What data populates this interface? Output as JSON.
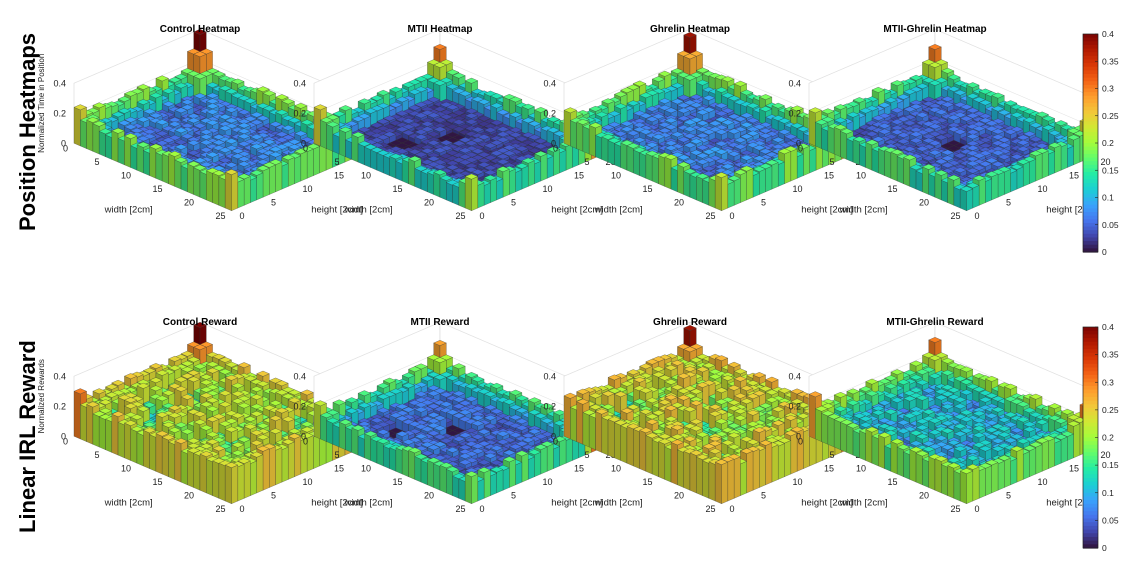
{
  "row_labels": [
    "Position Heatmaps",
    "Linear IRL Reward"
  ],
  "colorbar": {
    "min": 0,
    "max": 0.4,
    "ticks": [
      "0.4",
      "0.35",
      "0.3",
      "0.25",
      "0.2",
      "0.15",
      "0.1",
      "0.05",
      "0"
    ],
    "colormap": [
      "#30123b",
      "#4145ab",
      "#4675ed",
      "#39a2fc",
      "#1bcfd4",
      "#24eca6",
      "#61fc6c",
      "#a4fc3b",
      "#d1e834",
      "#f3c63a",
      "#fe9b2d",
      "#f36315",
      "#d93806",
      "#b11901",
      "#7a0403"
    ]
  },
  "chart_data": [
    {
      "type": "heatmap",
      "row": 0,
      "col": 0,
      "title": "Control Heatmap",
      "zlabel": "Normalized Time in Position",
      "xlabel": "width [2cm]",
      "ylabel": "height [2cm]",
      "x_ticks": [
        "0",
        "5",
        "10",
        "15",
        "20",
        "25"
      ],
      "y_ticks": [
        "0",
        "5",
        "10",
        "15",
        "20"
      ],
      "z_ticks": [
        "0",
        "0.2",
        "0.4"
      ],
      "zlim": [
        0,
        0.4
      ],
      "grid_size": [
        25,
        20
      ],
      "interior_level": 0.06,
      "edge_level": 0.14,
      "corner_peaks": [
        0.4,
        0.25,
        0.24,
        0.24
      ],
      "low_patches": []
    },
    {
      "type": "heatmap",
      "row": 0,
      "col": 1,
      "title": "MTII Heatmap",
      "zlabel": "",
      "xlabel": "width [2cm]",
      "ylabel": "height [2cm]",
      "x_ticks": [
        "0",
        "5",
        "10",
        "15",
        "20",
        "25"
      ],
      "y_ticks": [
        "0",
        "5",
        "10",
        "15",
        "20"
      ],
      "z_ticks": [
        "0",
        "0.2",
        "0.4"
      ],
      "zlim": [
        0,
        0.4
      ],
      "grid_size": [
        25,
        20
      ],
      "interior_level": 0.03,
      "edge_level": 0.11,
      "corner_peaks": [
        0.3,
        0.28,
        0.24,
        0.21
      ],
      "low_patches": [
        [
          10,
          8
        ],
        [
          7,
          13
        ]
      ]
    },
    {
      "type": "heatmap",
      "row": 0,
      "col": 2,
      "title": "Ghrelin Heatmap",
      "zlabel": "",
      "xlabel": "width [2cm]",
      "ylabel": "height [2cm]",
      "x_ticks": [
        "0",
        "5",
        "10",
        "15",
        "20",
        "25"
      ],
      "y_ticks": [
        "0",
        "5",
        "10",
        "15",
        "20"
      ],
      "z_ticks": [
        "0",
        "0.2",
        "0.4"
      ],
      "zlim": [
        0,
        0.4
      ],
      "grid_size": [
        25,
        20
      ],
      "interior_level": 0.06,
      "edge_level": 0.14,
      "corner_peaks": [
        0.38,
        0.25,
        0.22,
        0.22
      ],
      "low_patches": []
    },
    {
      "type": "heatmap",
      "row": 0,
      "col": 3,
      "title": "MTII-Ghrelin Heatmap",
      "zlabel": "",
      "xlabel": "width [2cm]",
      "ylabel": "height [2cm]",
      "x_ticks": [
        "0",
        "5",
        "10",
        "15",
        "20",
        "25"
      ],
      "y_ticks": [
        "0",
        "5",
        "10",
        "15",
        "20"
      ],
      "z_ticks": [
        "0",
        "0.2",
        "0.4"
      ],
      "zlim": [
        0,
        0.4
      ],
      "grid_size": [
        25,
        20
      ],
      "interior_level": 0.045,
      "edge_level": 0.12,
      "corner_peaks": [
        0.3,
        0.24,
        0.22,
        0.12
      ],
      "low_patches": [
        [
          12,
          9
        ]
      ]
    },
    {
      "type": "heatmap",
      "row": 1,
      "col": 0,
      "title": "Control Reward",
      "zlabel": "Normalized Rewards",
      "xlabel": "width [2cm]",
      "ylabel": "height [2cm]",
      "x_ticks": [
        "0",
        "5",
        "10",
        "15",
        "20",
        "25"
      ],
      "y_ticks": [
        "0",
        "5",
        "10",
        "15",
        "20"
      ],
      "z_ticks": [
        "0",
        "0.2",
        "0.4"
      ],
      "zlim": [
        0,
        0.4
      ],
      "grid_size": [
        25,
        20
      ],
      "interior_level": 0.17,
      "edge_level": 0.2,
      "corner_peaks": [
        0.4,
        0.3,
        0.3,
        0.24
      ],
      "low_patches": []
    },
    {
      "type": "heatmap",
      "row": 1,
      "col": 1,
      "title": "MTII Reward",
      "zlabel": "",
      "xlabel": "width [2cm]",
      "ylabel": "height [2cm]",
      "x_ticks": [
        "0",
        "5",
        "10",
        "15",
        "20",
        "25"
      ],
      "y_ticks": [
        "0",
        "5",
        "10",
        "15",
        "20"
      ],
      "z_ticks": [
        "0",
        "0.2",
        "0.4"
      ],
      "zlim": [
        0,
        0.4
      ],
      "grid_size": [
        25,
        20
      ],
      "interior_level": 0.05,
      "edge_level": 0.12,
      "corner_peaks": [
        0.28,
        0.3,
        0.22,
        0.18
      ],
      "low_patches": [
        [
          10,
          8
        ],
        [
          6,
          13
        ]
      ]
    },
    {
      "type": "heatmap",
      "row": 1,
      "col": 2,
      "title": "Ghrelin Reward",
      "zlabel": "",
      "xlabel": "width [2cm]",
      "ylabel": "height [2cm]",
      "x_ticks": [
        "0",
        "5",
        "10",
        "15",
        "20",
        "25"
      ],
      "y_ticks": [
        "0",
        "5",
        "10",
        "15",
        "20"
      ],
      "z_ticks": [
        "0",
        "0.2",
        "0.4"
      ],
      "zlim": [
        0,
        0.4
      ],
      "grid_size": [
        25,
        20
      ],
      "interior_level": 0.18,
      "edge_level": 0.21,
      "corner_peaks": [
        0.38,
        0.28,
        0.27,
        0.25
      ],
      "low_patches": []
    },
    {
      "type": "heatmap",
      "row": 1,
      "col": 3,
      "title": "MTII-Ghrelin Reward",
      "zlabel": "",
      "xlabel": "width [2cm]",
      "ylabel": "height [2cm]",
      "x_ticks": [
        "0",
        "5",
        "10",
        "15",
        "20",
        "25"
      ],
      "y_ticks": [
        "0",
        "5",
        "10",
        "15",
        "20"
      ],
      "z_ticks": [
        "0",
        "0.2",
        "0.4"
      ],
      "zlim": [
        0,
        0.4
      ],
      "grid_size": [
        25,
        20
      ],
      "interior_level": 0.09,
      "edge_level": 0.15,
      "corner_peaks": [
        0.3,
        0.3,
        0.28,
        0.2
      ],
      "low_patches": []
    }
  ]
}
